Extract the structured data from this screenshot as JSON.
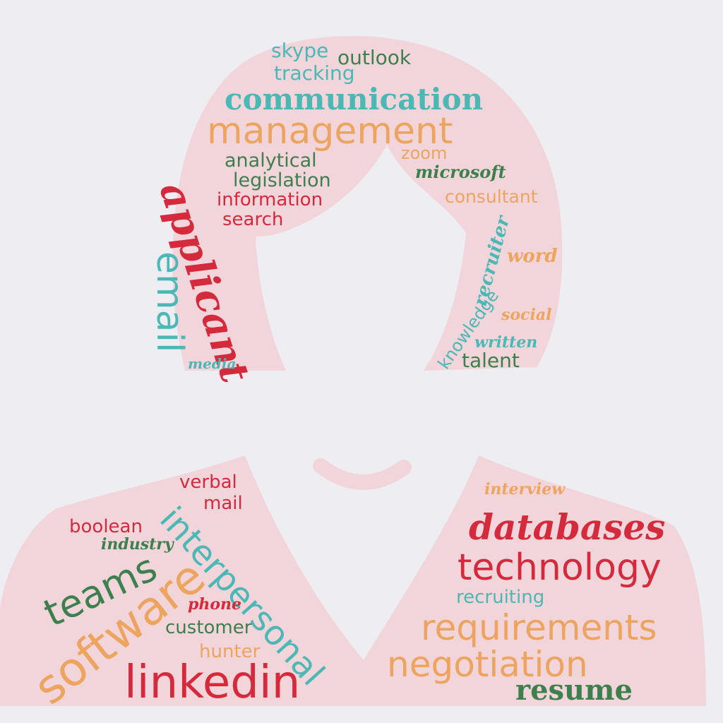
{
  "palette": {
    "background": "#eeedf2",
    "silhouette": "#f1d5da",
    "teal": "#4bb8b6",
    "orange": "#eda45f",
    "green": "#3d7f4d",
    "red": "#d42a3c"
  },
  "hair": {
    "words": {
      "skype": "skype",
      "outlook": "outlook",
      "tracking": "tracking",
      "communication": "communication",
      "management": "management",
      "analytical": "analytical",
      "zoom": "zoom",
      "legislation": "legislation",
      "microsoft": "microsoft",
      "information": "information",
      "consultant": "consultant",
      "search": "search",
      "applicant": "applicant",
      "email": "email",
      "recruiter": "recruiter",
      "word": "word",
      "knowledge": "knowledge",
      "social": "social",
      "written": "written",
      "talent": "talent",
      "media": "media"
    }
  },
  "torso": {
    "words": {
      "verbal": "verbal",
      "mail": "mail",
      "boolean": "boolean",
      "interpersonal": "interpersonal",
      "industry": "industry",
      "teams": "teams",
      "software": "software",
      "phone": "phone",
      "customer": "customer",
      "hunter": "hunter",
      "linkedin": "linkedin",
      "interview": "interview",
      "databases": "databases",
      "technology": "technology",
      "recruiting": "recruiting",
      "requirements": "requirements",
      "negotiation": "negotiation",
      "resume": "resume"
    }
  }
}
